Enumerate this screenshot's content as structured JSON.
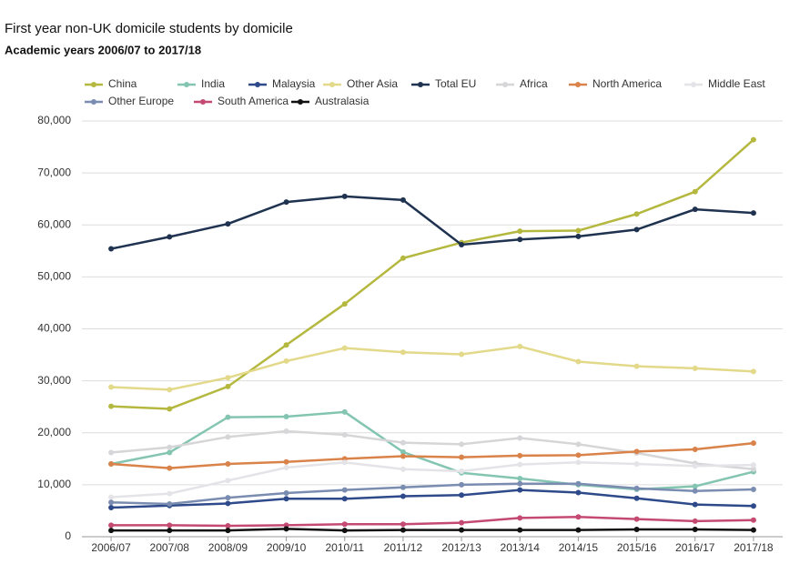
{
  "chart_data": {
    "type": "line",
    "title": "First year non-UK domicile students by domicile",
    "subtitle": "Academic years 2006/07 to 2017/18",
    "categories": [
      "2006/07",
      "2007/08",
      "2008/09",
      "2009/10",
      "2010/11",
      "2011/12",
      "2012/13",
      "2013/14",
      "2014/15",
      "2015/16",
      "2016/17",
      "2017/18"
    ],
    "ylim": [
      0,
      80000
    ],
    "yticks": [
      0,
      {
        "value": 10000,
        "label": "10,000"
      },
      {
        "value": 20000,
        "label": "20,000"
      },
      {
        "value": 30000,
        "label": "30,000"
      },
      {
        "value": 40000,
        "label": "40,000"
      },
      {
        "value": 50000,
        "label": "50,000"
      },
      {
        "value": 60000,
        "label": "60,000"
      },
      {
        "value": 70000,
        "label": "70,000"
      },
      {
        "value": 80000,
        "label": "80,000"
      }
    ],
    "grid": true,
    "series": [
      {
        "name": "China",
        "color": "#b5b83f",
        "values": [
          25100,
          24600,
          28900,
          36900,
          44800,
          53600,
          56600,
          58800,
          58900,
          62100,
          66400,
          76400
        ]
      },
      {
        "name": "India",
        "color": "#84c5b2",
        "values": [
          14000,
          16200,
          23000,
          23100,
          24000,
          16300,
          12300,
          11200,
          10000,
          9100,
          9700,
          12500
        ]
      },
      {
        "name": "Malaysia",
        "color": "#2e4a8a",
        "values": [
          5600,
          6000,
          6400,
          7300,
          7300,
          7800,
          8000,
          9000,
          8500,
          7400,
          6200,
          5900
        ]
      },
      {
        "name": "Other Asia",
        "color": "#e3d98a",
        "values": [
          28800,
          28300,
          30600,
          33800,
          36300,
          35500,
          35100,
          36600,
          33700,
          32800,
          32400,
          31800
        ]
      },
      {
        "name": "Total EU",
        "color": "#1f3350",
        "values": [
          55400,
          57700,
          60200,
          64400,
          65500,
          64800,
          56200,
          57200,
          57800,
          59100,
          63000,
          62300
        ]
      },
      {
        "name": "Africa",
        "color": "#d6d6d8",
        "values": [
          16200,
          17200,
          19200,
          20300,
          19600,
          18100,
          17800,
          19000,
          17800,
          16100,
          14100,
          13000
        ]
      },
      {
        "name": "North America",
        "color": "#d9834b",
        "values": [
          14000,
          13200,
          14000,
          14400,
          15000,
          15500,
          15300,
          15600,
          15700,
          16400,
          16800,
          18000
        ]
      },
      {
        "name": "Middle East",
        "color": "#e4e4e8",
        "values": [
          7600,
          8300,
          10800,
          13300,
          14300,
          13000,
          12600,
          13900,
          14300,
          14000,
          13600,
          13800
        ]
      },
      {
        "name": "Other Europe",
        "color": "#7a8db0",
        "values": [
          6600,
          6300,
          7500,
          8400,
          9000,
          9500,
          10000,
          10200,
          10200,
          9300,
          8800,
          9100
        ]
      },
      {
        "name": "South America",
        "color": "#c44a72",
        "values": [
          2200,
          2200,
          2100,
          2200,
          2400,
          2400,
          2700,
          3600,
          3800,
          3400,
          3000,
          3200
        ]
      },
      {
        "name": "Australasia",
        "color": "#111111",
        "values": [
          1200,
          1200,
          1200,
          1500,
          1200,
          1300,
          1300,
          1300,
          1300,
          1400,
          1400,
          1300
        ]
      }
    ]
  }
}
